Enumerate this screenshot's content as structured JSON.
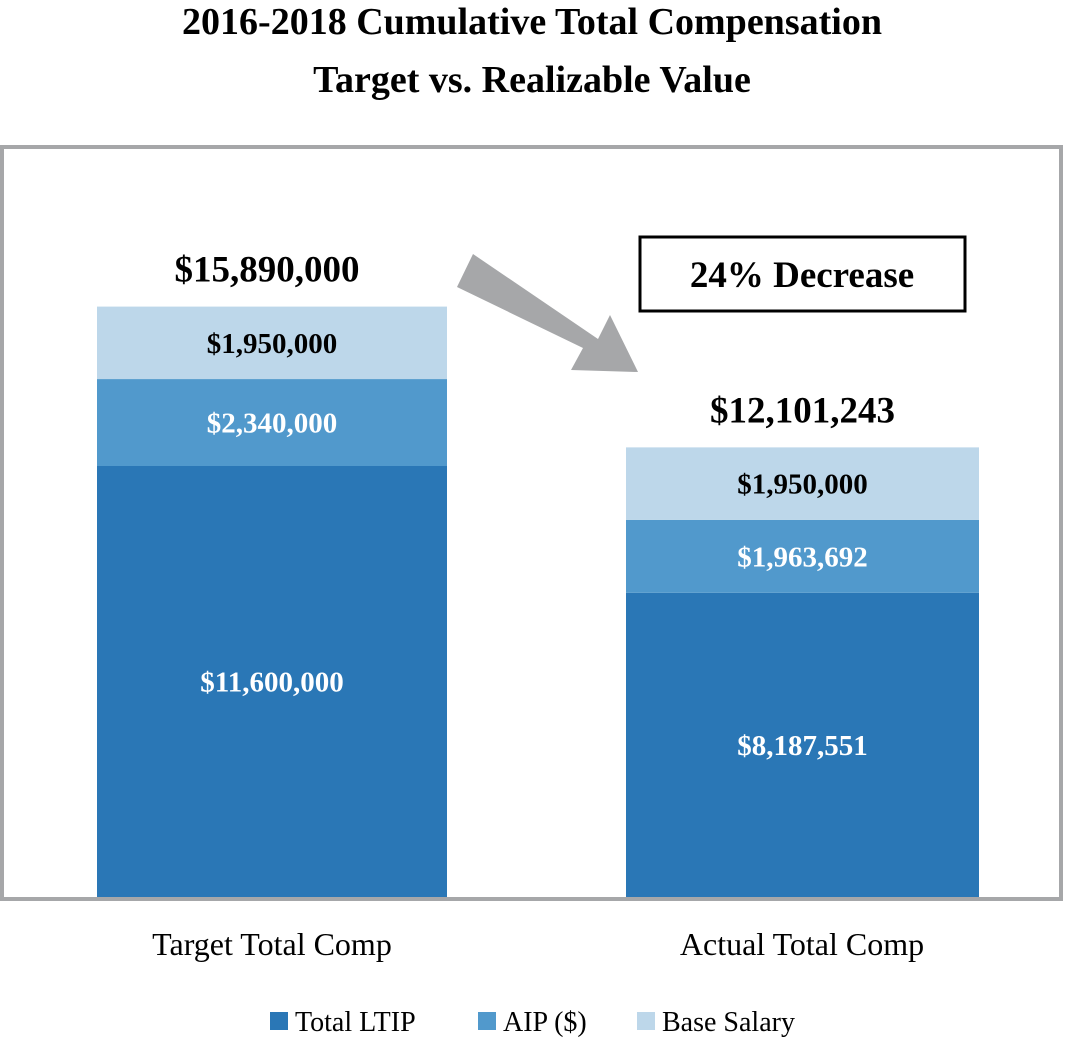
{
  "chart_data": {
    "type": "bar",
    "stacked": true,
    "title_lines": [
      "2016-2018 Cumulative Total Compensation",
      "Target vs. Realizable Value"
    ],
    "categories": [
      "Target Total Comp",
      "Actual Total Comp"
    ],
    "series": [
      {
        "name": "Total LTIP",
        "color": "#2a77b6",
        "label_color": "#ffffff",
        "values": [
          11600000,
          8187551
        ],
        "labels": [
          "$11,600,000",
          "$8,187,551"
        ]
      },
      {
        "name": "AIP ($)",
        "color": "#5199cc",
        "label_color": "#ffffff",
        "values": [
          2340000,
          1963692
        ],
        "labels": [
          "$2,340,000",
          "$1,963,692"
        ]
      },
      {
        "name": "Base Salary",
        "color": "#bdd7ea",
        "label_color": "#000000",
        "values": [
          1950000,
          1950000
        ],
        "labels": [
          "$1,950,000",
          "$1,950,000"
        ]
      }
    ],
    "totals": [
      15890000,
      12101243
    ],
    "total_labels": [
      "$15,890,000",
      "$12,101,243"
    ],
    "ylim": [
      0,
      20000000
    ],
    "grid": false,
    "legend_position": "bottom",
    "annotation": {
      "text": "24% Decrease",
      "arrow_color": "#a6a7a9"
    },
    "frame_color": "#a6a7a9"
  }
}
